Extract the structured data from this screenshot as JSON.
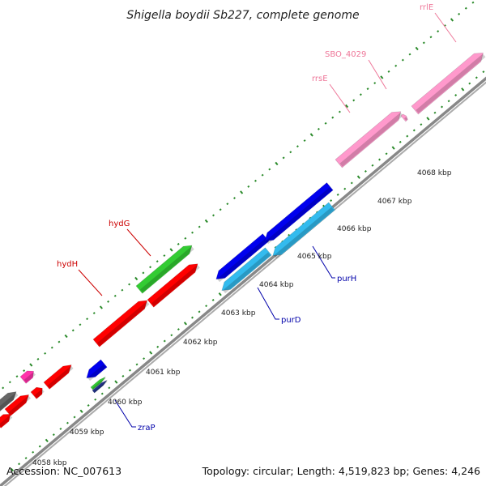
{
  "title": "Shigella boydii Sb227, complete genome",
  "footer": {
    "accession": "Accession: NC_007613",
    "summary": "Topology: circular; Length: 4,519,823 bp; Genes: 4,246"
  },
  "colors": {
    "backbone": "#888888",
    "tick": "#2a8a2a",
    "red": "#ff0000",
    "green": "#33cc33",
    "blue": "#0000ee",
    "cyan": "#33bbee",
    "pink": "#ff99cc",
    "magenta": "#ff33aa",
    "gray": "#666666",
    "redLabel": "#cc0000",
    "blueLabel": "#0000aa",
    "pinkLabel": "#ee7799"
  },
  "kbp_labels": [
    "4058 kbp",
    "4059 kbp",
    "4060 kbp",
    "4061 kbp",
    "4062 kbp",
    "4063 kbp",
    "4064 kbp",
    "4065 kbp",
    "4066 kbp",
    "4067 kbp",
    "4068 kbp"
  ],
  "gene_labels": [
    {
      "name": "hydG",
      "color": "red"
    },
    {
      "name": "hydH",
      "color": "red"
    },
    {
      "name": "purH",
      "color": "blue"
    },
    {
      "name": "purD",
      "color": "blue"
    },
    {
      "name": "zraP",
      "color": "blue"
    },
    {
      "name": "rrsE",
      "color": "pink"
    },
    {
      "name": "SBO_4029",
      "color": "pink"
    },
    {
      "name": "rrlE",
      "color": "pink"
    }
  ]
}
